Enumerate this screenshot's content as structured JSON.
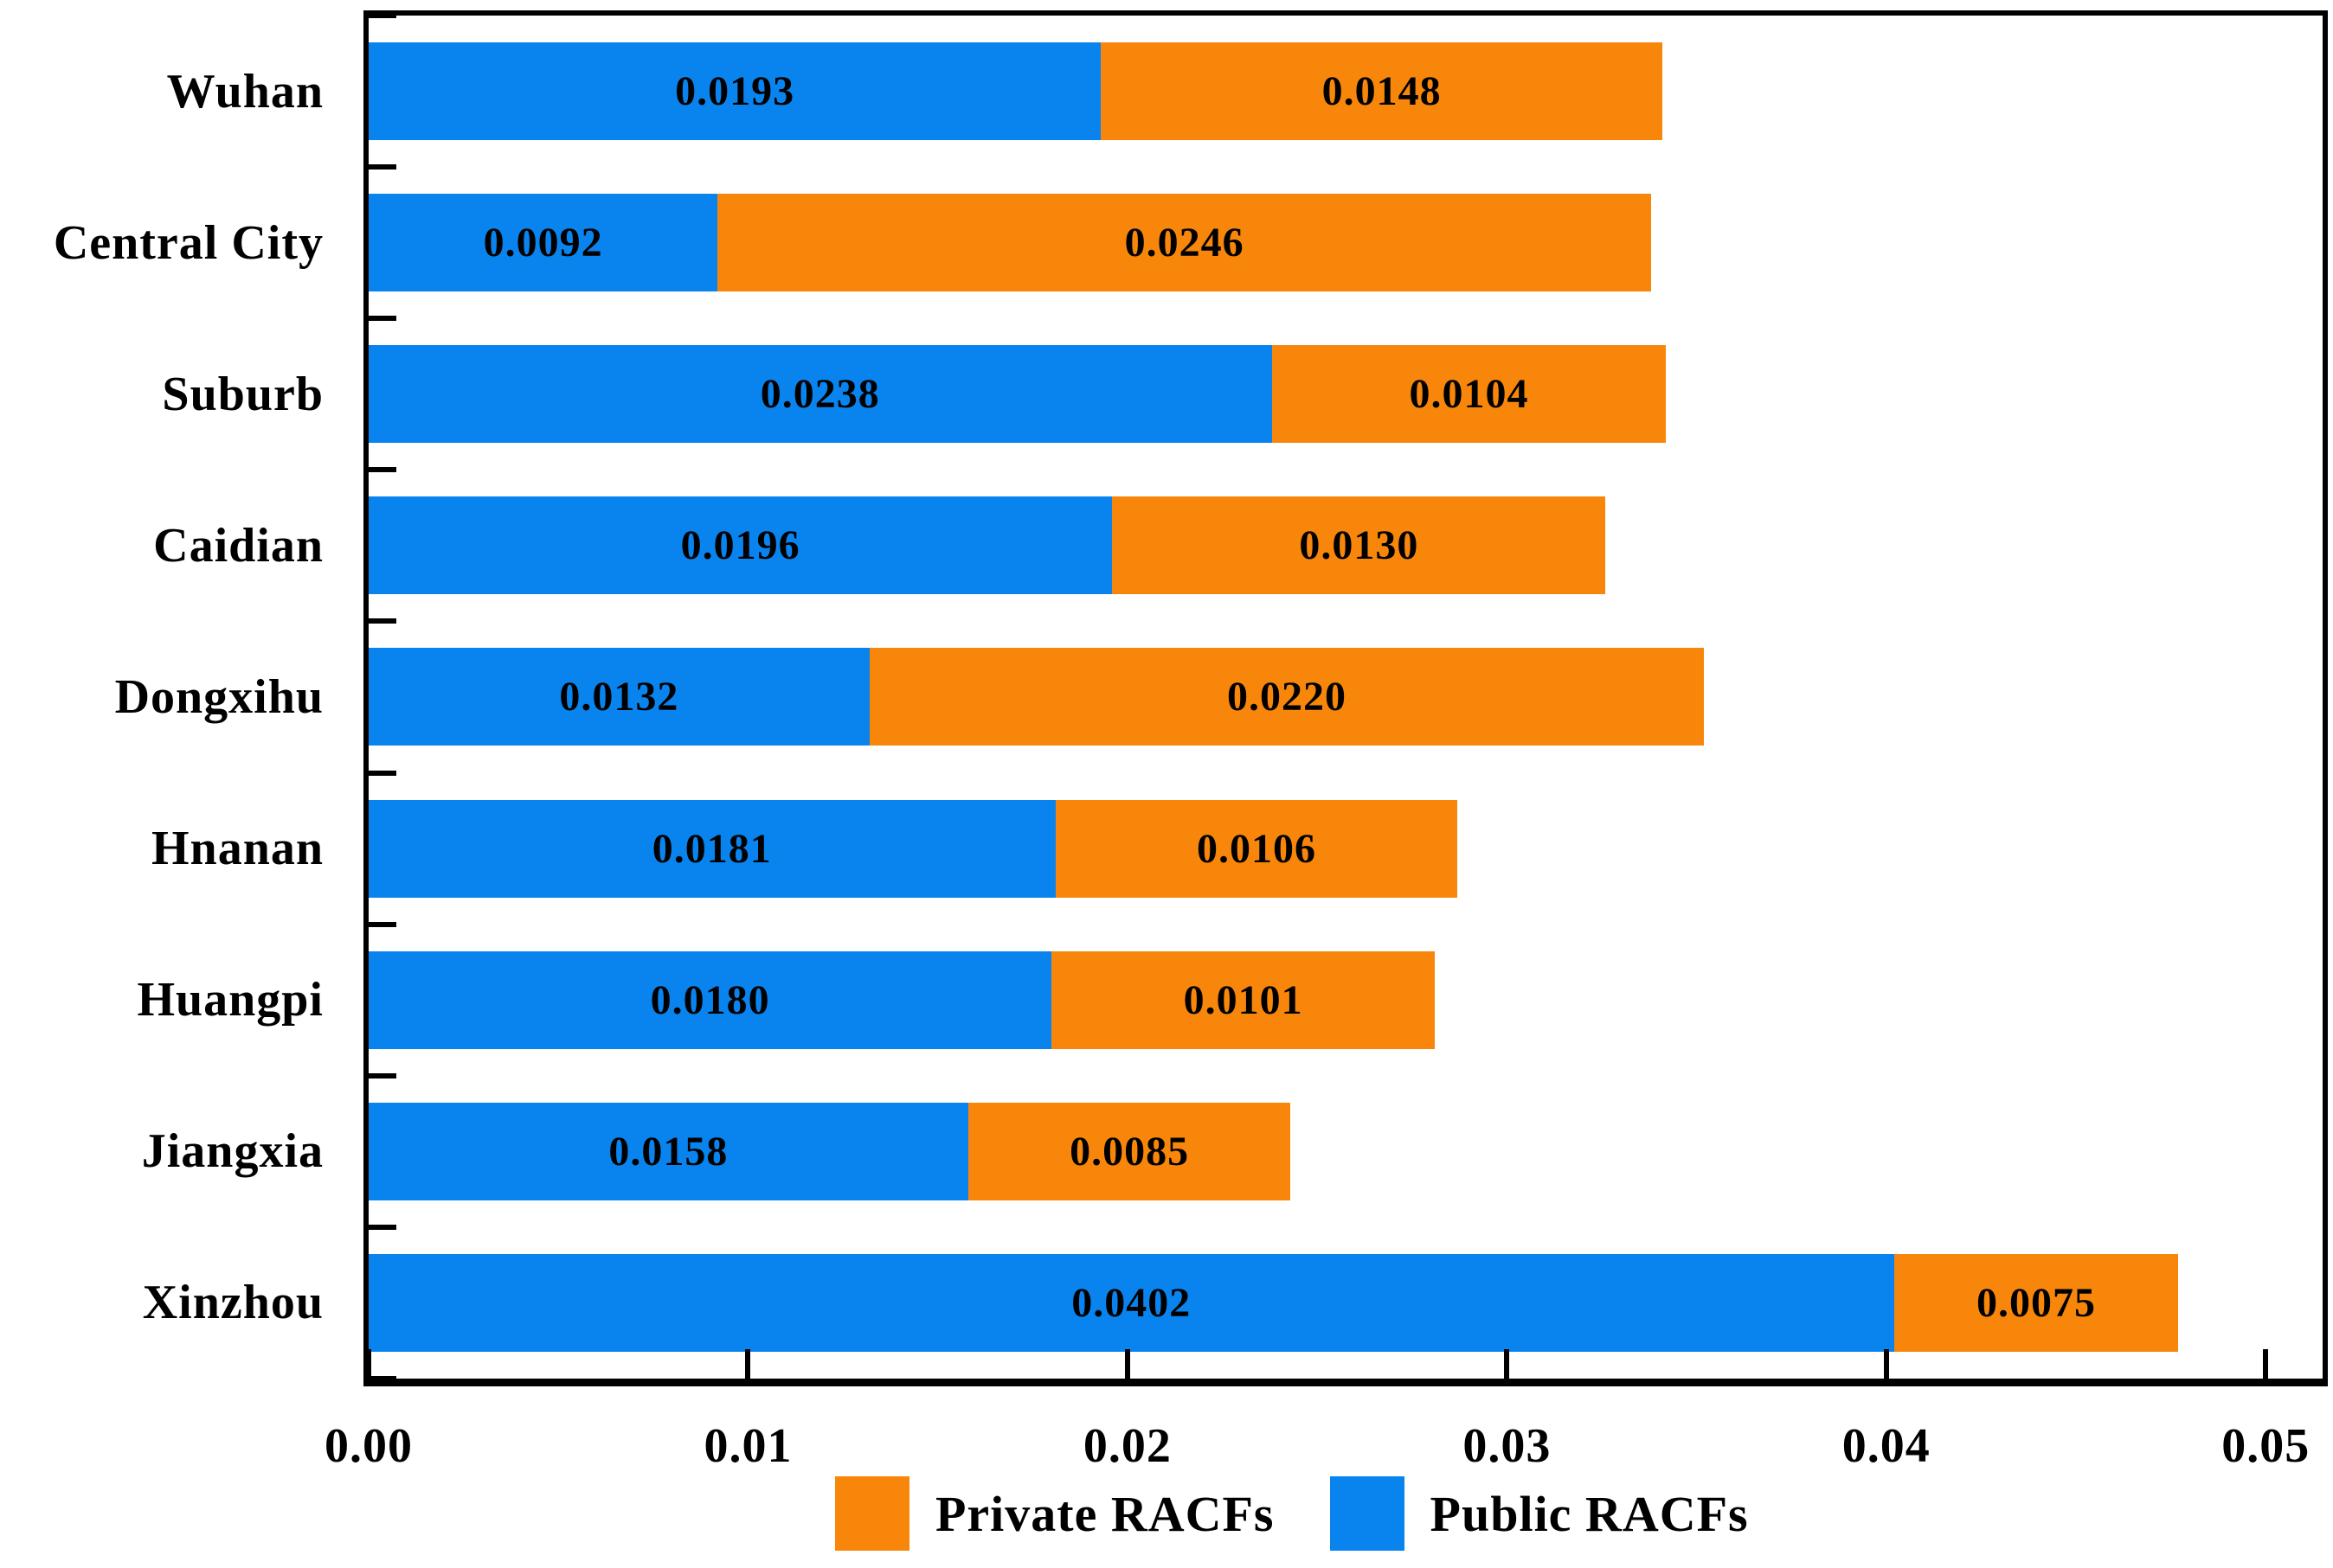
{
  "chart_data": {
    "type": "bar",
    "orientation": "horizontal",
    "stacked": true,
    "categories": [
      "Wuhan",
      "Central City",
      "Suburb",
      "Caidian",
      "Dongxihu",
      "Hnanan",
      "Huangpi",
      "Jiangxia",
      "Xinzhou"
    ],
    "series": [
      {
        "name": "Public RACFs",
        "color": "#0984EF",
        "values": [
          0.0193,
          0.0092,
          0.0238,
          0.0196,
          0.0132,
          0.0181,
          0.018,
          0.0158,
          0.0402
        ],
        "labels": [
          "0.0193",
          "0.0092",
          "0.0238",
          "0.0196",
          "0.0132",
          "0.0181",
          "0.0180",
          "0.0158",
          "0.0402"
        ]
      },
      {
        "name": "Private RACFs",
        "color": "#F8860B",
        "values": [
          0.0148,
          0.0246,
          0.0104,
          0.013,
          0.022,
          0.0106,
          0.0101,
          0.0085,
          0.0075
        ],
        "labels": [
          "0.0148",
          "0.0246",
          "0.0104",
          "0.0130",
          "0.0220",
          "0.0106",
          "0.0101",
          "0.0085",
          "0.0075"
        ]
      }
    ],
    "xlabel": "",
    "ylabel": "",
    "xlim": [
      0,
      0.0515
    ],
    "x_ticks": [
      {
        "value": 0.0,
        "label": "0.00"
      },
      {
        "value": 0.01,
        "label": "0.01"
      },
      {
        "value": 0.02,
        "label": "0.02"
      },
      {
        "value": 0.03,
        "label": "0.03"
      },
      {
        "value": 0.04,
        "label": "0.04"
      },
      {
        "value": 0.05,
        "label": "0.05"
      }
    ],
    "grid": false,
    "legend_position": "bottom",
    "legend": [
      {
        "label": "Private RACFs",
        "color": "#F8860B"
      },
      {
        "label": "Public RACFs",
        "color": "#0984EF"
      }
    ],
    "colors": {
      "axis": "#000000",
      "background": "#ffffff",
      "bar_value_text": "#000000"
    }
  }
}
